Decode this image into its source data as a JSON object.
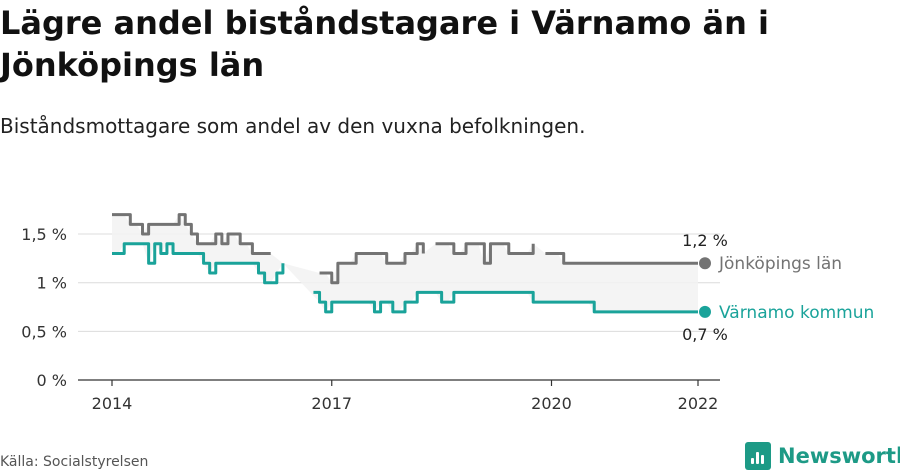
{
  "title": "Lägre andel biståndstagare i Värnamo än i Jönköpings län",
  "subtitle": "Biståndsmottagare som andel av den vuxna befolkningen.",
  "source": "Källa: Socialstyrelsen",
  "brand": {
    "name": "Newsworthy",
    "icon": "bar-chart-logo-icon",
    "color": "#1d9a86"
  },
  "chart_data": {
    "type": "line",
    "title": "",
    "xlabel": "",
    "ylabel": "",
    "y_ticks": [
      "0 %",
      "0,5 %",
      "1 %",
      "1,5 %"
    ],
    "y_tick_values": [
      0,
      0.5,
      1.0,
      1.5
    ],
    "x_ticks": [
      "2014",
      "2017",
      "2020",
      "2022"
    ],
    "x_tick_values": [
      "2014-01",
      "2017-01",
      "2020-01",
      "2022-01"
    ],
    "xlim": [
      "2014-01",
      "2022-01"
    ],
    "ylim": [
      0,
      1.85
    ],
    "grid": true,
    "band_between_series": true,
    "x": [
      "2014-01",
      "2014-02",
      "2014-03",
      "2014-04",
      "2014-05",
      "2014-06",
      "2014-07",
      "2014-08",
      "2014-09",
      "2014-10",
      "2014-11",
      "2014-12",
      "2015-01",
      "2015-02",
      "2015-03",
      "2015-04",
      "2015-05",
      "2015-06",
      "2015-07",
      "2015-08",
      "2015-09",
      "2015-10",
      "2015-11",
      "2015-12",
      "2016-01",
      "2016-02",
      "2016-03",
      "2016-04",
      "2016-05",
      "2016-06",
      "2016-07",
      "2016-08",
      "2016-09",
      "2016-10",
      "2016-11",
      "2016-12",
      "2017-01",
      "2017-02",
      "2017-03",
      "2017-04",
      "2017-05",
      "2017-06",
      "2017-07",
      "2017-08",
      "2017-09",
      "2017-10",
      "2017-11",
      "2017-12",
      "2018-01",
      "2018-02",
      "2018-03",
      "2018-04",
      "2018-05",
      "2018-06",
      "2018-07",
      "2018-08",
      "2018-09",
      "2018-10",
      "2018-11",
      "2018-12",
      "2019-01",
      "2019-02",
      "2019-03",
      "2019-04",
      "2019-05",
      "2019-06",
      "2019-07",
      "2019-08",
      "2019-09",
      "2019-10",
      "2019-11",
      "2019-12",
      "2020-01",
      "2020-02",
      "2020-03",
      "2020-04",
      "2020-05",
      "2020-06",
      "2020-07",
      "2020-08",
      "2020-09",
      "2020-10",
      "2020-11",
      "2020-12",
      "2021-01",
      "2021-02",
      "2021-03",
      "2021-04",
      "2021-05",
      "2021-06",
      "2021-07",
      "2021-08",
      "2021-09",
      "2021-10",
      "2021-11",
      "2021-12",
      "2022-01"
    ],
    "series": [
      {
        "name": "Jönköpings län",
        "color": "#737373",
        "end_label": "1,2 %",
        "values": [
          1.7,
          1.7,
          1.7,
          1.6,
          1.6,
          1.5,
          1.6,
          1.6,
          1.6,
          1.6,
          1.6,
          1.7,
          1.6,
          1.5,
          1.4,
          1.4,
          1.4,
          1.5,
          1.4,
          1.5,
          1.5,
          1.4,
          1.4,
          1.3,
          1.3,
          1.3,
          1.3,
          null,
          1.2,
          null,
          null,
          1.2,
          null,
          null,
          1.1,
          1.1,
          1.0,
          1.2,
          1.2,
          1.2,
          1.3,
          1.3,
          1.3,
          1.3,
          1.3,
          1.2,
          1.2,
          1.2,
          1.3,
          1.3,
          1.4,
          1.3,
          null,
          1.4,
          1.4,
          1.4,
          1.3,
          1.3,
          1.4,
          1.4,
          1.4,
          1.2,
          1.4,
          1.4,
          1.4,
          1.3,
          1.3,
          1.3,
          1.3,
          1.4,
          null,
          1.3,
          1.3,
          1.3,
          1.2,
          1.2,
          1.2,
          1.2,
          1.2,
          1.2,
          1.2,
          1.2,
          1.2,
          1.2,
          1.2,
          1.2,
          1.2,
          1.2,
          1.2,
          1.2,
          1.2,
          1.2,
          1.2,
          1.2,
          1.2,
          1.2,
          1.2
        ]
      },
      {
        "name": "Värnamo kommun",
        "color": "#1aa39a",
        "end_label": "0,7 %",
        "values": [
          1.3,
          1.3,
          1.4,
          1.4,
          1.4,
          1.4,
          1.2,
          1.4,
          1.3,
          1.4,
          1.3,
          1.3,
          1.3,
          1.3,
          1.3,
          1.2,
          1.1,
          1.2,
          1.2,
          1.2,
          1.2,
          1.2,
          1.2,
          1.2,
          1.1,
          1.0,
          1.0,
          1.1,
          1.2,
          null,
          1.0,
          null,
          null,
          0.9,
          0.8,
          0.7,
          0.8,
          0.8,
          0.8,
          0.8,
          0.8,
          0.8,
          0.8,
          0.7,
          0.8,
          0.8,
          0.7,
          0.7,
          0.8,
          0.8,
          0.9,
          0.9,
          0.9,
          0.9,
          0.8,
          0.8,
          0.9,
          0.9,
          0.9,
          0.9,
          0.9,
          0.9,
          0.9,
          0.9,
          0.9,
          0.9,
          0.9,
          0.9,
          0.9,
          0.8,
          0.8,
          0.8,
          0.8,
          0.8,
          0.8,
          0.8,
          0.8,
          0.8,
          0.8,
          0.7,
          0.7,
          0.7,
          0.7,
          0.7,
          0.7,
          0.7,
          0.7,
          0.7,
          0.7,
          0.7,
          0.7,
          0.7,
          0.7,
          0.7,
          0.7,
          0.7,
          0.7
        ]
      }
    ]
  }
}
